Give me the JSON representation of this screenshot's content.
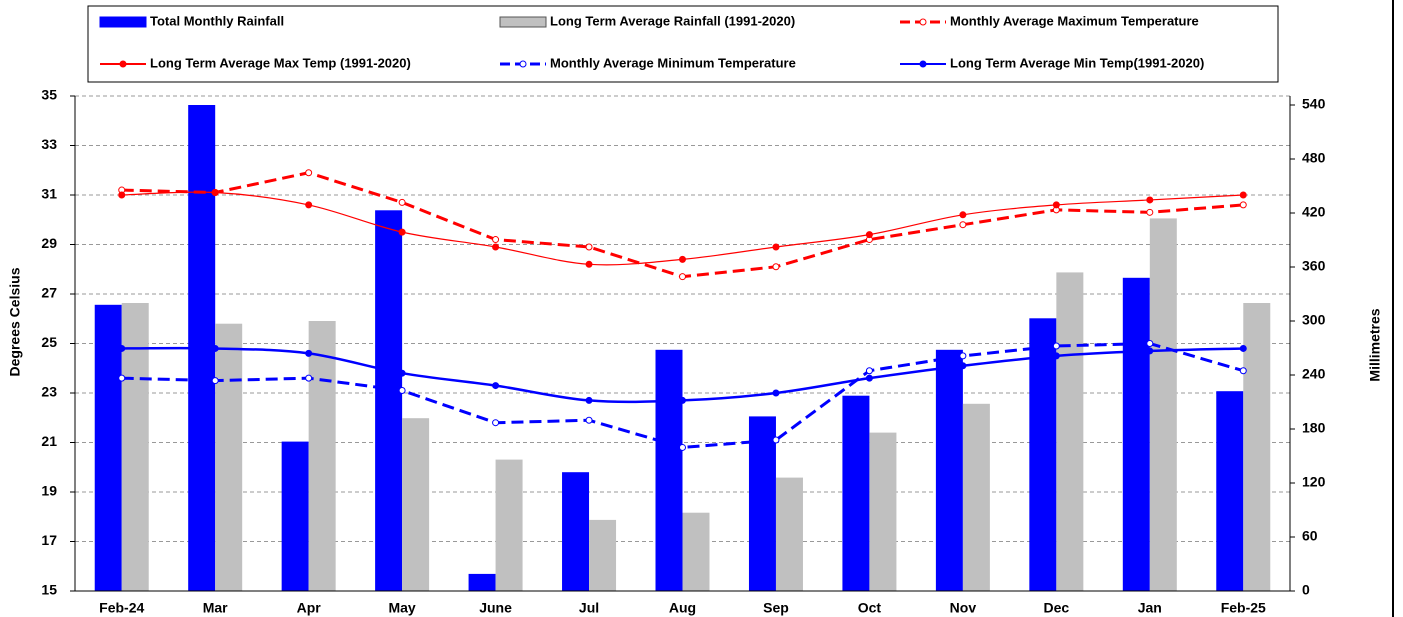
{
  "chart_data": {
    "type": "bar_line_combo",
    "categories": [
      "Feb-24",
      "Mar",
      "Apr",
      "May",
      "June",
      "Jul",
      "Aug",
      "Sep",
      "Oct",
      "Nov",
      "Dec",
      "Jan",
      "Feb-25"
    ],
    "ylabel": "Degrees Celsius",
    "y2label": "Millimetres",
    "ylim": [
      15,
      35
    ],
    "yticks": [
      15,
      17,
      19,
      21,
      23,
      25,
      27,
      29,
      31,
      33,
      35
    ],
    "y2lim": [
      0,
      550
    ],
    "y2ticks": [
      0,
      60,
      120,
      180,
      240,
      300,
      360,
      420,
      480,
      540
    ],
    "grid": true,
    "series": [
      {
        "name": "Total Monthly Rainfall",
        "kind": "bar",
        "axis": "y2",
        "color": "#0000ff",
        "values": [
          318,
          540,
          166,
          423,
          19,
          132,
          268,
          194,
          217,
          268,
          303,
          348,
          222
        ]
      },
      {
        "name": "Long Term Average Rainfall (1991-2020)",
        "kind": "bar",
        "axis": "y2",
        "color": "#c0c0c0",
        "values": [
          320,
          297,
          300,
          192,
          146,
          79,
          87,
          126,
          176,
          208,
          354,
          414,
          320
        ]
      },
      {
        "name": "Monthly Average Maximum Temperature",
        "kind": "line",
        "color": "#ff0000",
        "dash": true,
        "marker": "open",
        "values": [
          31.2,
          31.1,
          31.9,
          30.7,
          29.2,
          28.9,
          27.7,
          28.1,
          29.2,
          29.8,
          30.4,
          30.3,
          30.6
        ]
      },
      {
        "name": "Long Term Average Max Temp (1991-2020)",
        "kind": "line",
        "color": "#ff0000",
        "dash": false,
        "marker": "filled",
        "smooth": true,
        "values": [
          31.0,
          31.1,
          30.6,
          29.5,
          28.9,
          28.2,
          28.4,
          28.9,
          29.4,
          30.2,
          30.6,
          30.8,
          31.0
        ]
      },
      {
        "name": "Monthly Average Minimum Temperature",
        "kind": "line",
        "color": "#0000ff",
        "dash": true,
        "marker": "open",
        "values": [
          23.6,
          23.5,
          23.6,
          23.1,
          21.8,
          21.9,
          20.8,
          21.1,
          23.9,
          24.5,
          24.9,
          25.0,
          23.9
        ]
      },
      {
        "name": "Long Term Average Min Temp(1991-2020)",
        "kind": "line",
        "color": "#0000ff",
        "dash": false,
        "marker": "filled",
        "smooth": true,
        "values": [
          24.8,
          24.8,
          24.6,
          23.8,
          23.3,
          22.7,
          22.7,
          23.0,
          23.6,
          24.1,
          24.5,
          24.7,
          24.8
        ]
      }
    ]
  }
}
